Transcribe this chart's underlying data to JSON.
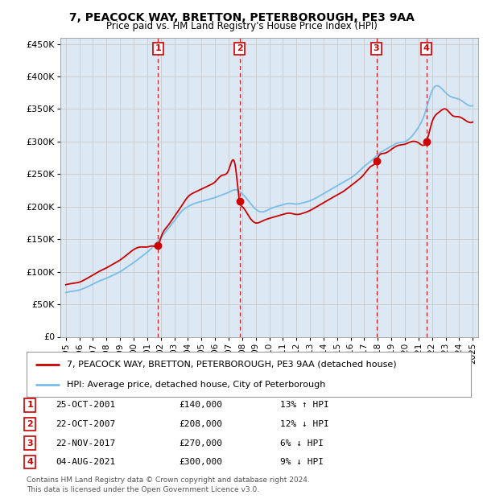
{
  "title": "7, PEACOCK WAY, BRETTON, PETERBOROUGH, PE3 9AA",
  "subtitle": "Price paid vs. HM Land Registry's House Price Index (HPI)",
  "legend_line1": "7, PEACOCK WAY, BRETTON, PETERBOROUGH, PE3 9AA (detached house)",
  "legend_line2": "HPI: Average price, detached house, City of Peterborough",
  "table_rows": [
    {
      "num": "1",
      "date": "25-OCT-2001",
      "price": "£140,000",
      "hpi": "13% ↑ HPI"
    },
    {
      "num": "2",
      "date": "22-OCT-2007",
      "price": "£208,000",
      "hpi": "12% ↓ HPI"
    },
    {
      "num": "3",
      "date": "22-NOV-2017",
      "price": "£270,000",
      "hpi": "6% ↓ HPI"
    },
    {
      "num": "4",
      "date": "04-AUG-2021",
      "price": "£300,000",
      "hpi": "9% ↓ HPI"
    }
  ],
  "footnote1": "Contains HM Land Registry data © Crown copyright and database right 2024.",
  "footnote2": "This data is licensed under the Open Government Licence v3.0.",
  "sale_years": [
    2001.81,
    2007.81,
    2017.9,
    2021.59
  ],
  "sale_prices": [
    140000,
    208000,
    270000,
    300000
  ],
  "hpi_color": "#7abde8",
  "price_color": "#cc0000",
  "vline_color": "#cc0000",
  "dot_color": "#cc0000",
  "grid_color": "#c8c8c8",
  "plot_bg_color": "#dce8f4",
  "ylim": [
    0,
    460000
  ],
  "ytick_vals": [
    0,
    50000,
    100000,
    150000,
    200000,
    250000,
    300000,
    350000,
    400000,
    450000
  ],
  "ytick_labels": [
    "£0",
    "£50K",
    "£100K",
    "£150K",
    "£200K",
    "£250K",
    "£300K",
    "£350K",
    "£400K",
    "£450K"
  ],
  "xlim_start": 1994.6,
  "xlim_end": 2025.4,
  "hpi_data_x": [
    1995.0,
    1995.5,
    1996.0,
    1996.5,
    1997.0,
    1997.5,
    1998.0,
    1998.5,
    1999.0,
    1999.5,
    2000.0,
    2000.5,
    2001.0,
    2001.5,
    2002.0,
    2002.5,
    2003.0,
    2003.5,
    2004.0,
    2004.5,
    2005.0,
    2005.5,
    2006.0,
    2006.5,
    2007.0,
    2007.5,
    2008.0,
    2008.5,
    2009.0,
    2009.5,
    2010.0,
    2010.5,
    2011.0,
    2011.5,
    2012.0,
    2012.5,
    2013.0,
    2013.5,
    2014.0,
    2014.5,
    2015.0,
    2015.5,
    2016.0,
    2016.5,
    2017.0,
    2017.5,
    2018.0,
    2018.5,
    2019.0,
    2019.5,
    2020.0,
    2020.5,
    2021.0,
    2021.5,
    2022.0,
    2022.5,
    2023.0,
    2023.5,
    2024.0,
    2024.5,
    2025.0
  ],
  "hpi_data_y": [
    68000,
    70000,
    72000,
    76000,
    81000,
    86000,
    90000,
    95000,
    100000,
    107000,
    114000,
    122000,
    130000,
    140000,
    152000,
    165000,
    178000,
    192000,
    200000,
    205000,
    208000,
    211000,
    214000,
    218000,
    222000,
    226000,
    220000,
    208000,
    196000,
    192000,
    196000,
    200000,
    203000,
    205000,
    204000,
    206000,
    209000,
    214000,
    220000,
    226000,
    232000,
    238000,
    244000,
    252000,
    262000,
    270000,
    280000,
    287000,
    293000,
    298000,
    300000,
    308000,
    322000,
    345000,
    378000,
    385000,
    375000,
    368000,
    365000,
    358000,
    355000
  ],
  "price_data_x": [
    1995.0,
    1995.5,
    1996.0,
    1996.5,
    1997.0,
    1997.5,
    1998.0,
    1998.5,
    1999.0,
    1999.5,
    2000.0,
    2000.5,
    2001.0,
    2001.5,
    2001.81,
    2002.0,
    2002.5,
    2003.0,
    2003.5,
    2004.0,
    2004.5,
    2005.0,
    2005.5,
    2006.0,
    2006.5,
    2007.0,
    2007.5,
    2007.81,
    2008.0,
    2008.5,
    2009.0,
    2009.5,
    2010.0,
    2010.5,
    2011.0,
    2011.5,
    2012.0,
    2012.5,
    2013.0,
    2013.5,
    2014.0,
    2014.5,
    2015.0,
    2015.5,
    2016.0,
    2016.5,
    2017.0,
    2017.5,
    2017.9,
    2018.0,
    2018.5,
    2019.0,
    2019.5,
    2020.0,
    2020.5,
    2021.0,
    2021.59,
    2022.0,
    2022.5,
    2023.0,
    2023.5,
    2024.0,
    2024.5,
    2025.0
  ],
  "price_data_y": [
    80000,
    82000,
    84000,
    89000,
    95000,
    101000,
    106000,
    112000,
    118000,
    126000,
    134000,
    138000,
    138000,
    139000,
    140000,
    152000,
    170000,
    185000,
    200000,
    215000,
    222000,
    227000,
    232000,
    238000,
    248000,
    256000,
    262000,
    208000,
    200000,
    185000,
    175000,
    178000,
    182000,
    185000,
    188000,
    190000,
    188000,
    190000,
    194000,
    200000,
    206000,
    212000,
    218000,
    224000,
    232000,
    240000,
    250000,
    262000,
    270000,
    275000,
    282000,
    288000,
    294000,
    296000,
    300000,
    298000,
    300000,
    330000,
    345000,
    350000,
    340000,
    338000,
    332000,
    330000
  ]
}
